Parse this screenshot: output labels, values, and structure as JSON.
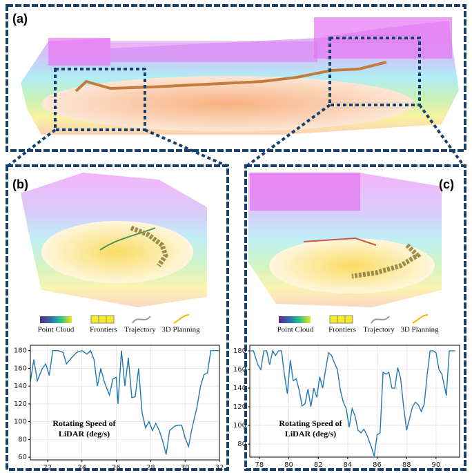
{
  "panels": {
    "a": "(a)",
    "b": "(b)",
    "c": "(c)"
  },
  "legend": [
    "Point Cloud",
    "Frontiers",
    "Trajectory",
    "3D Planning"
  ],
  "chart_data": [
    {
      "type": "line",
      "annotation": [
        "Rotating Speed of",
        "LiDAR (deg/s)"
      ],
      "x": [
        21.0,
        21.2,
        21.4,
        21.7,
        21.9,
        22.1,
        22.3,
        22.6,
        22.9,
        23.1,
        23.4,
        23.7,
        24.0,
        24.3,
        24.5,
        24.7,
        24.9,
        25.1,
        25.3,
        25.6,
        25.8,
        26.0,
        26.1,
        26.3,
        26.5,
        26.7,
        26.9,
        27.1,
        27.3,
        27.5,
        27.7,
        27.9,
        28.1,
        28.3,
        28.5,
        28.7,
        28.9,
        29.1,
        29.4,
        29.6,
        29.8,
        30.0,
        30.2,
        30.4,
        30.7,
        30.9,
        31.1,
        31.3,
        31.5,
        31.7,
        32.0
      ],
      "values": [
        145,
        170,
        146,
        160,
        165,
        152,
        180,
        180,
        178,
        165,
        172,
        178,
        180,
        176,
        180,
        170,
        140,
        160,
        145,
        130,
        148,
        150,
        120,
        180,
        140,
        172,
        127,
        128,
        160,
        110,
        93,
        100,
        90,
        98,
        90,
        78,
        63,
        90,
        95,
        96,
        96,
        82,
        72,
        92,
        117,
        140,
        153,
        155,
        180,
        180,
        180
      ],
      "color": "#1f77b4",
      "xlim": [
        21,
        32
      ],
      "ylim": [
        57,
        186
      ],
      "xticks": [
        22,
        24,
        26,
        28,
        30,
        32
      ],
      "yticks": [
        60,
        80,
        100,
        120,
        140,
        160,
        180
      ],
      "grid": true
    },
    {
      "type": "line",
      "annotation": [
        "Rotating Speed of",
        "LiDAR (deg/s)"
      ],
      "x": [
        77.4,
        77.6,
        77.9,
        78.1,
        78.3,
        78.5,
        78.7,
        78.9,
        79.1,
        79.3,
        79.5,
        79.7,
        79.9,
        80.1,
        80.3,
        80.5,
        80.7,
        80.9,
        81.1,
        81.3,
        81.5,
        81.7,
        81.9,
        82.1,
        82.3,
        82.5,
        82.7,
        82.9,
        83.1,
        83.3,
        83.5,
        83.7,
        83.9,
        84.1,
        84.3,
        84.5,
        84.7,
        84.9,
        85.1,
        85.3,
        85.6,
        85.8,
        86.0,
        86.2,
        86.4,
        86.6,
        86.8,
        87.0,
        87.2,
        87.4,
        87.6,
        87.8,
        88.0,
        88.2,
        88.4,
        88.6,
        88.8,
        89.0,
        89.2,
        89.4,
        89.6,
        89.8,
        90.0,
        90.2,
        90.4,
        90.7,
        90.9,
        91.3
      ],
      "values": [
        180,
        180,
        165,
        160,
        180,
        180,
        165,
        180,
        175,
        180,
        180,
        155,
        134,
        170,
        148,
        150,
        138,
        121,
        123,
        139,
        120,
        140,
        130,
        152,
        140,
        160,
        178,
        175,
        167,
        160,
        138,
        125,
        118,
        98,
        118,
        110,
        95,
        92,
        96,
        90,
        77,
        67,
        90,
        92,
        157,
        155,
        157,
        140,
        140,
        162,
        150,
        120,
        95,
        107,
        120,
        125,
        122,
        115,
        123,
        155,
        180,
        180,
        178,
        160,
        155,
        132,
        180,
        180
      ],
      "color": "#1f77b4",
      "xlim": [
        77.35,
        91.6
      ],
      "ylim": [
        66,
        186
      ],
      "xticks": [
        78,
        80,
        82,
        84,
        86,
        88,
        90
      ],
      "yticks": [
        80,
        100,
        120,
        140,
        160,
        180
      ],
      "grid": true
    }
  ]
}
